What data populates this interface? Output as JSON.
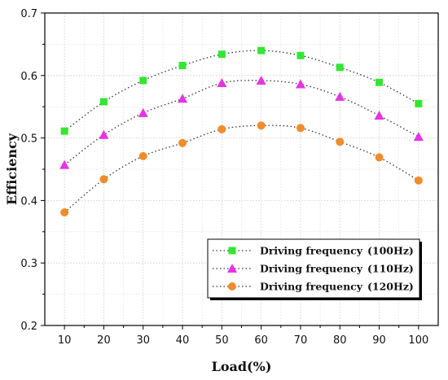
{
  "chart_data": {
    "type": "line",
    "title": "",
    "xlabel": "Load(%)",
    "ylabel": "Efficiency",
    "x": [
      10,
      20,
      30,
      40,
      50,
      60,
      70,
      80,
      90,
      100
    ],
    "xlim": [
      5,
      105
    ],
    "ylim": [
      0.2,
      0.7
    ],
    "xticks": [
      "10",
      "20",
      "30",
      "40",
      "50",
      "60",
      "70",
      "80",
      "90",
      "100"
    ],
    "yticks": [
      "0.2",
      "0.3",
      "0.4",
      "0.5",
      "0.6",
      "0.7"
    ],
    "grid": true,
    "legend_position": "lower-right",
    "series": [
      {
        "name": "Driving frequency",
        "freq": "(100Hz)",
        "marker": "square",
        "color": "#33e633",
        "values": [
          0.511,
          0.558,
          0.592,
          0.616,
          0.634,
          0.64,
          0.632,
          0.613,
          0.589,
          0.555
        ]
      },
      {
        "name": "Driving frequency",
        "freq": "(110Hz)",
        "marker": "triangle",
        "color": "#e633e6",
        "values": [
          0.457,
          0.505,
          0.54,
          0.563,
          0.588,
          0.592,
          0.586,
          0.566,
          0.536,
          0.502
        ]
      },
      {
        "name": "Driving frequency",
        "freq": "(120Hz)",
        "marker": "circle",
        "color": "#f08c2a",
        "values": [
          0.381,
          0.434,
          0.471,
          0.492,
          0.514,
          0.52,
          0.516,
          0.494,
          0.469,
          0.432
        ]
      }
    ]
  }
}
